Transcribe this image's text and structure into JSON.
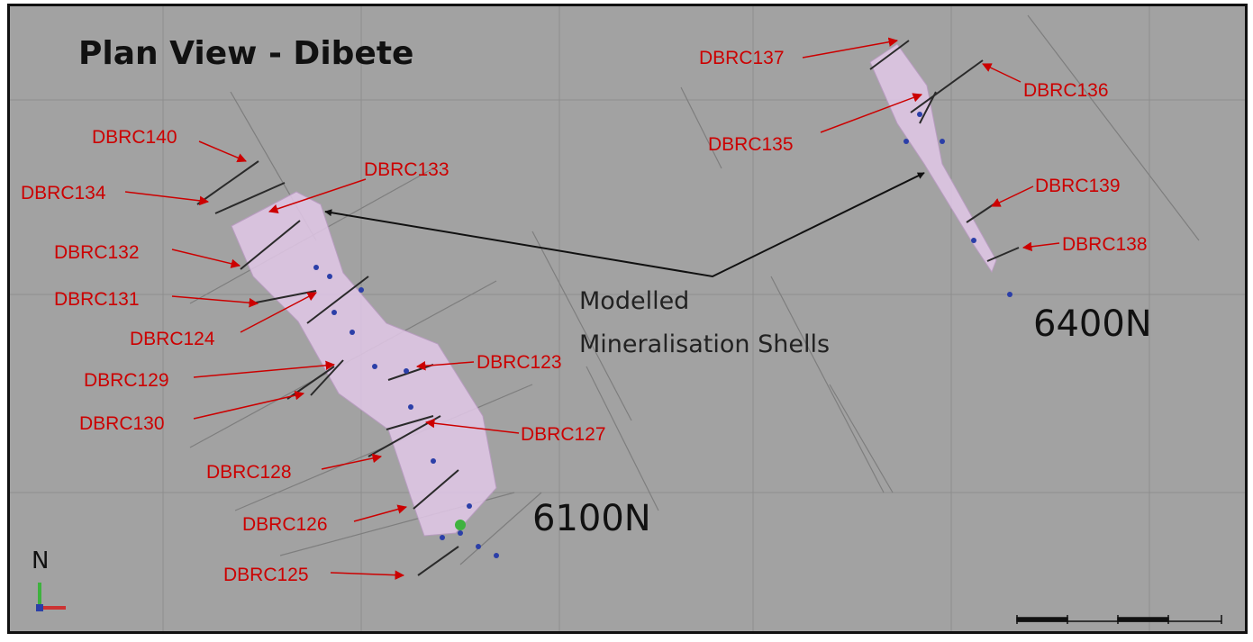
{
  "title": "Plan View - Dibete",
  "annotation": {
    "line1": "Modelled",
    "line2": "Mineralisation Shells"
  },
  "sections": {
    "south": "6100N",
    "north": "6400N"
  },
  "north_arrow": "N",
  "colors": {
    "background": "#a2a2a2",
    "label": "#cc0000",
    "shell_fill": "#e2c8e8",
    "grid": "#8e8e8e"
  },
  "drillholes": {
    "dbrc137": "DBRC137",
    "dbrc136": "DBRC136",
    "dbrc135": "DBRC135",
    "dbrc139": "DBRC139",
    "dbrc138": "DBRC138",
    "dbrc140": "DBRC140",
    "dbrc133": "DBRC133",
    "dbrc134": "DBRC134",
    "dbrc132": "DBRC132",
    "dbrc131": "DBRC131",
    "dbrc124": "DBRC124",
    "dbrc129": "DBRC129",
    "dbrc123": "DBRC123",
    "dbrc130": "DBRC130",
    "dbrc127": "DBRC127",
    "dbrc128": "DBRC128",
    "dbrc126": "DBRC126",
    "dbrc125": "DBRC125"
  }
}
